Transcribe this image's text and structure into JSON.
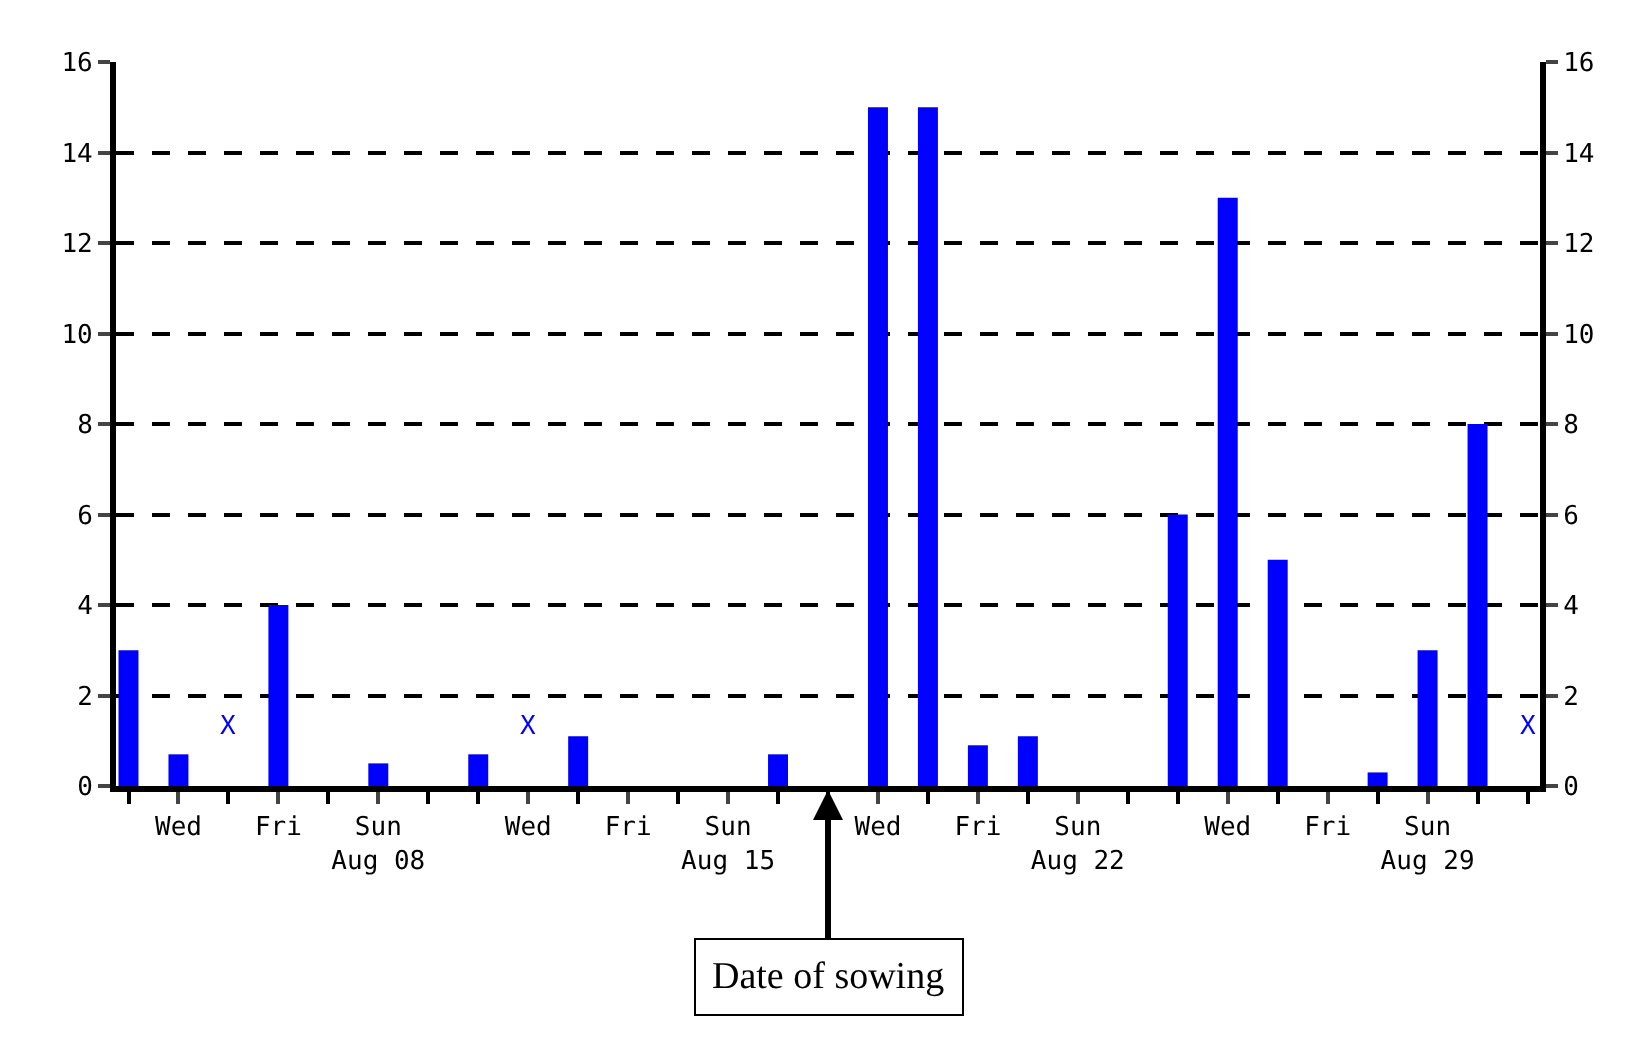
{
  "chart_data": {
    "type": "bar",
    "categories": [
      null,
      "Wed",
      null,
      "Fri",
      null,
      "Sun\nAug 08",
      null,
      null,
      "Wed",
      null,
      "Fri",
      null,
      "Sun\nAug 15",
      null,
      null,
      "Wed",
      null,
      "Fri",
      null,
      "Sun\nAug 22",
      null,
      null,
      "Wed",
      null,
      "Fri",
      null,
      "Sun\nAug 29",
      null,
      null
    ],
    "values": [
      3,
      0.7,
      null,
      4,
      0,
      0.5,
      0,
      0.7,
      null,
      1.1,
      0,
      0,
      0,
      0.7,
      0,
      15,
      15,
      0.9,
      1.1,
      0,
      0,
      6,
      13,
      5,
      0,
      0.3,
      3,
      8,
      null
    ],
    "value_labels": [
      null,
      null,
      "X",
      null,
      null,
      null,
      null,
      null,
      "X",
      null,
      null,
      null,
      null,
      null,
      null,
      null,
      null,
      null,
      null,
      null,
      null,
      null,
      null,
      null,
      null,
      null,
      null,
      null,
      "X"
    ],
    "color": "#0000ff",
    "ylim": [
      0,
      16
    ],
    "yticks": [
      0,
      2,
      4,
      6,
      8,
      10,
      12,
      14,
      16
    ],
    "y2lim": [
      0,
      16
    ],
    "y2ticks": [
      0,
      2,
      4,
      6,
      8,
      10,
      12,
      14,
      16
    ],
    "grid": "y",
    "line_style": "dashed",
    "annotations": [
      "Date of sowing"
    ]
  }
}
